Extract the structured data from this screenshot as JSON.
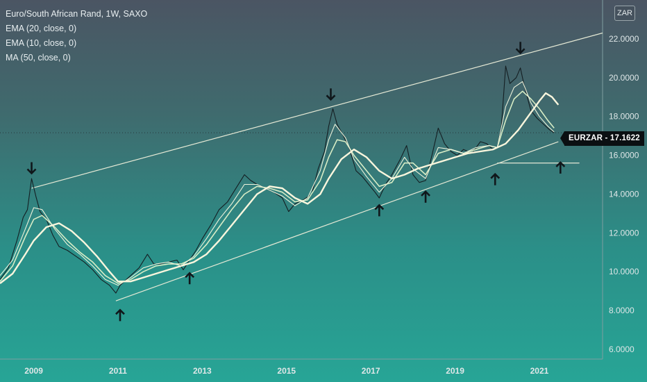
{
  "header": {
    "title": "Euro/South African Rand, 1W, SAXO",
    "indicators": [
      "EMA (20, close, 0)",
      "EMA (10, close, 0)",
      "MA (50, close, 0)"
    ],
    "currency_button": "ZAR",
    "price_tag": "EURZAR  -  17.1622"
  },
  "colors": {
    "price": "#141e22",
    "ema20": "#d8edc6",
    "ema10": "#eef3dc",
    "ma50": "#faf6dd",
    "channel": "#e6ead6",
    "arrow": "#10171b",
    "axis_text": "#dfe7e8"
  },
  "chart_data": {
    "type": "line",
    "title": "Euro/South African Rand, 1W, SAXO",
    "xlabel": "",
    "ylabel": "",
    "xlim": [
      2008.2,
      2022.5
    ],
    "ylim": [
      5.5,
      24.0
    ],
    "y_ticks": [
      "22.0000",
      "20.0000",
      "18.0000",
      "16.0000",
      "14.0000",
      "12.0000",
      "10.0000",
      "8.0000",
      "6.0000"
    ],
    "x_ticks": [
      "2009",
      "2011",
      "2013",
      "2015",
      "2017",
      "2019",
      "2021"
    ],
    "last_price": 17.1622,
    "series": [
      {
        "name": "EURZAR",
        "values": [
          [
            2008.2,
            9.6
          ],
          [
            2008.4,
            10.2
          ],
          [
            2008.6,
            11.6
          ],
          [
            2008.75,
            12.8
          ],
          [
            2008.85,
            13.2
          ],
          [
            2008.95,
            14.8
          ],
          [
            2009.05,
            13.9
          ],
          [
            2009.15,
            13.1
          ],
          [
            2009.3,
            12.7
          ],
          [
            2009.45,
            11.9
          ],
          [
            2009.6,
            11.3
          ],
          [
            2009.8,
            11.1
          ],
          [
            2010.0,
            10.8
          ],
          [
            2010.2,
            10.5
          ],
          [
            2010.4,
            10.1
          ],
          [
            2010.6,
            9.6
          ],
          [
            2010.8,
            9.3
          ],
          [
            2010.95,
            8.9
          ],
          [
            2011.05,
            9.3
          ],
          [
            2011.3,
            9.8
          ],
          [
            2011.5,
            10.2
          ],
          [
            2011.7,
            10.9
          ],
          [
            2011.85,
            10.4
          ],
          [
            2012.0,
            10.4
          ],
          [
            2012.2,
            10.5
          ],
          [
            2012.4,
            10.6
          ],
          [
            2012.55,
            10.1
          ],
          [
            2012.7,
            10.6
          ],
          [
            2012.85,
            11.1
          ],
          [
            2013.0,
            11.7
          ],
          [
            2013.2,
            12.4
          ],
          [
            2013.4,
            13.2
          ],
          [
            2013.6,
            13.6
          ],
          [
            2013.8,
            14.3
          ],
          [
            2014.0,
            15.0
          ],
          [
            2014.15,
            14.7
          ],
          [
            2014.3,
            14.5
          ],
          [
            2014.5,
            14.3
          ],
          [
            2014.7,
            14.1
          ],
          [
            2014.9,
            13.8
          ],
          [
            2015.05,
            13.1
          ],
          [
            2015.2,
            13.5
          ],
          [
            2015.4,
            13.7
          ],
          [
            2015.6,
            14.0
          ],
          [
            2015.75,
            15.3
          ],
          [
            2015.9,
            16.2
          ],
          [
            2016.0,
            17.5
          ],
          [
            2016.1,
            18.4
          ],
          [
            2016.2,
            17.6
          ],
          [
            2016.35,
            17.0
          ],
          [
            2016.5,
            16.3
          ],
          [
            2016.65,
            15.2
          ],
          [
            2016.8,
            14.9
          ],
          [
            2016.95,
            14.5
          ],
          [
            2017.1,
            14.1
          ],
          [
            2017.2,
            13.8
          ],
          [
            2017.35,
            14.5
          ],
          [
            2017.5,
            15.0
          ],
          [
            2017.7,
            15.8
          ],
          [
            2017.85,
            16.5
          ],
          [
            2018.0,
            15.0
          ],
          [
            2018.15,
            14.6
          ],
          [
            2018.3,
            14.7
          ],
          [
            2018.45,
            16.0
          ],
          [
            2018.6,
            17.4
          ],
          [
            2018.75,
            16.6
          ],
          [
            2018.9,
            16.2
          ],
          [
            2019.05,
            16.0
          ],
          [
            2019.2,
            16.3
          ],
          [
            2019.4,
            16.1
          ],
          [
            2019.6,
            16.7
          ],
          [
            2019.75,
            16.6
          ],
          [
            2019.9,
            16.3
          ],
          [
            2020.0,
            16.4
          ],
          [
            2020.1,
            17.5
          ],
          [
            2020.2,
            20.6
          ],
          [
            2020.3,
            19.7
          ],
          [
            2020.45,
            20.0
          ],
          [
            2020.55,
            20.5
          ],
          [
            2020.65,
            19.5
          ],
          [
            2020.8,
            18.3
          ],
          [
            2020.95,
            17.9
          ],
          [
            2021.1,
            17.6
          ],
          [
            2021.25,
            17.3
          ],
          [
            2021.35,
            17.1622
          ]
        ]
      },
      {
        "name": "EMA (20, close, 0)",
        "values": [
          [
            2008.2,
            9.5
          ],
          [
            2008.5,
            10.3
          ],
          [
            2008.8,
            11.8
          ],
          [
            2009.0,
            12.7
          ],
          [
            2009.2,
            12.9
          ],
          [
            2009.5,
            12.3
          ],
          [
            2009.8,
            11.6
          ],
          [
            2010.1,
            11.0
          ],
          [
            2010.4,
            10.5
          ],
          [
            2010.7,
            9.8
          ],
          [
            2011.0,
            9.4
          ],
          [
            2011.3,
            9.6
          ],
          [
            2011.6,
            10.0
          ],
          [
            2011.9,
            10.3
          ],
          [
            2012.2,
            10.4
          ],
          [
            2012.5,
            10.4
          ],
          [
            2012.8,
            10.7
          ],
          [
            2013.1,
            11.4
          ],
          [
            2013.4,
            12.3
          ],
          [
            2013.7,
            13.2
          ],
          [
            2014.0,
            14.0
          ],
          [
            2014.3,
            14.4
          ],
          [
            2014.6,
            14.3
          ],
          [
            2014.9,
            14.1
          ],
          [
            2015.2,
            13.6
          ],
          [
            2015.5,
            13.7
          ],
          [
            2015.8,
            14.7
          ],
          [
            2016.0,
            15.9
          ],
          [
            2016.2,
            16.8
          ],
          [
            2016.4,
            16.7
          ],
          [
            2016.6,
            16.0
          ],
          [
            2016.9,
            15.2
          ],
          [
            2017.2,
            14.4
          ],
          [
            2017.5,
            14.6
          ],
          [
            2017.8,
            15.6
          ],
          [
            2018.0,
            15.6
          ],
          [
            2018.3,
            15.0
          ],
          [
            2018.6,
            16.1
          ],
          [
            2018.9,
            16.3
          ],
          [
            2019.2,
            16.1
          ],
          [
            2019.5,
            16.3
          ],
          [
            2019.8,
            16.5
          ],
          [
            2020.0,
            16.4
          ],
          [
            2020.2,
            17.8
          ],
          [
            2020.4,
            18.9
          ],
          [
            2020.6,
            19.3
          ],
          [
            2020.8,
            18.9
          ],
          [
            2021.0,
            18.4
          ],
          [
            2021.2,
            17.8
          ],
          [
            2021.35,
            17.4
          ]
        ]
      },
      {
        "name": "EMA (10, close, 0)",
        "values": [
          [
            2008.2,
            9.8
          ],
          [
            2008.5,
            10.6
          ],
          [
            2008.8,
            12.2
          ],
          [
            2009.0,
            13.3
          ],
          [
            2009.2,
            13.2
          ],
          [
            2009.5,
            12.2
          ],
          [
            2009.8,
            11.4
          ],
          [
            2010.1,
            10.9
          ],
          [
            2010.4,
            10.3
          ],
          [
            2010.7,
            9.6
          ],
          [
            2011.0,
            9.3
          ],
          [
            2011.3,
            9.7
          ],
          [
            2011.6,
            10.2
          ],
          [
            2011.9,
            10.4
          ],
          [
            2012.2,
            10.5
          ],
          [
            2012.5,
            10.3
          ],
          [
            2012.8,
            10.8
          ],
          [
            2013.1,
            11.7
          ],
          [
            2013.4,
            12.7
          ],
          [
            2013.7,
            13.5
          ],
          [
            2014.0,
            14.5
          ],
          [
            2014.3,
            14.5
          ],
          [
            2014.6,
            14.2
          ],
          [
            2014.9,
            13.9
          ],
          [
            2015.2,
            13.4
          ],
          [
            2015.5,
            13.8
          ],
          [
            2015.8,
            15.2
          ],
          [
            2016.0,
            16.8
          ],
          [
            2016.15,
            17.6
          ],
          [
            2016.4,
            16.9
          ],
          [
            2016.6,
            15.8
          ],
          [
            2016.9,
            14.9
          ],
          [
            2017.2,
            14.1
          ],
          [
            2017.5,
            14.8
          ],
          [
            2017.8,
            15.9
          ],
          [
            2018.0,
            15.3
          ],
          [
            2018.3,
            14.8
          ],
          [
            2018.6,
            16.4
          ],
          [
            2018.9,
            16.3
          ],
          [
            2019.2,
            16.1
          ],
          [
            2019.5,
            16.4
          ],
          [
            2019.8,
            16.5
          ],
          [
            2020.0,
            16.4
          ],
          [
            2020.2,
            18.5
          ],
          [
            2020.4,
            19.5
          ],
          [
            2020.6,
            19.8
          ],
          [
            2020.8,
            18.7
          ],
          [
            2021.0,
            18.0
          ],
          [
            2021.2,
            17.5
          ],
          [
            2021.35,
            17.2
          ]
        ]
      },
      {
        "name": "MA (50, close, 0)",
        "values": [
          [
            2008.2,
            9.4
          ],
          [
            2008.5,
            9.9
          ],
          [
            2008.8,
            10.9
          ],
          [
            2009.0,
            11.6
          ],
          [
            2009.3,
            12.3
          ],
          [
            2009.6,
            12.5
          ],
          [
            2009.9,
            12.1
          ],
          [
            2010.2,
            11.5
          ],
          [
            2010.5,
            10.8
          ],
          [
            2010.8,
            10.0
          ],
          [
            2011.0,
            9.5
          ],
          [
            2011.3,
            9.5
          ],
          [
            2011.6,
            9.7
          ],
          [
            2011.9,
            9.9
          ],
          [
            2012.2,
            10.1
          ],
          [
            2012.5,
            10.3
          ],
          [
            2012.8,
            10.5
          ],
          [
            2013.1,
            10.9
          ],
          [
            2013.4,
            11.6
          ],
          [
            2013.7,
            12.4
          ],
          [
            2014.0,
            13.2
          ],
          [
            2014.3,
            14.0
          ],
          [
            2014.6,
            14.4
          ],
          [
            2014.9,
            14.3
          ],
          [
            2015.2,
            13.8
          ],
          [
            2015.5,
            13.5
          ],
          [
            2015.8,
            14.0
          ],
          [
            2016.0,
            14.8
          ],
          [
            2016.3,
            15.8
          ],
          [
            2016.6,
            16.3
          ],
          [
            2016.9,
            15.9
          ],
          [
            2017.2,
            15.2
          ],
          [
            2017.5,
            14.8
          ],
          [
            2017.8,
            15.0
          ],
          [
            2018.1,
            15.3
          ],
          [
            2018.4,
            15.5
          ],
          [
            2018.7,
            15.7
          ],
          [
            2019.0,
            15.9
          ],
          [
            2019.3,
            16.1
          ],
          [
            2019.6,
            16.2
          ],
          [
            2019.9,
            16.3
          ],
          [
            2020.2,
            16.6
          ],
          [
            2020.5,
            17.3
          ],
          [
            2020.8,
            18.2
          ],
          [
            2021.0,
            18.8
          ],
          [
            2021.15,
            19.2
          ],
          [
            2021.3,
            19.0
          ],
          [
            2021.45,
            18.6
          ]
        ]
      }
    ],
    "channel_lines": [
      {
        "x": [
          2008.95,
          2022.5
        ],
        "y": [
          14.3,
          22.3
        ]
      },
      {
        "x": [
          2010.95,
          2021.45
        ],
        "y": [
          8.5,
          16.7
        ]
      },
      {
        "x": [
          2020.0,
          2021.95
        ],
        "y": [
          15.6,
          15.6
        ]
      }
    ],
    "annotations": {
      "arrows_down": [
        [
          2008.95,
          15.0
        ],
        [
          2016.05,
          18.8
        ],
        [
          2020.55,
          21.2
        ]
      ],
      "arrows_up": [
        [
          2011.05,
          8.1
        ],
        [
          2012.7,
          10.0
        ],
        [
          2017.2,
          13.5
        ],
        [
          2018.3,
          14.2
        ],
        [
          2019.95,
          15.1
        ],
        [
          2021.5,
          15.7
        ]
      ]
    },
    "grid": false,
    "legend": "top-left"
  }
}
